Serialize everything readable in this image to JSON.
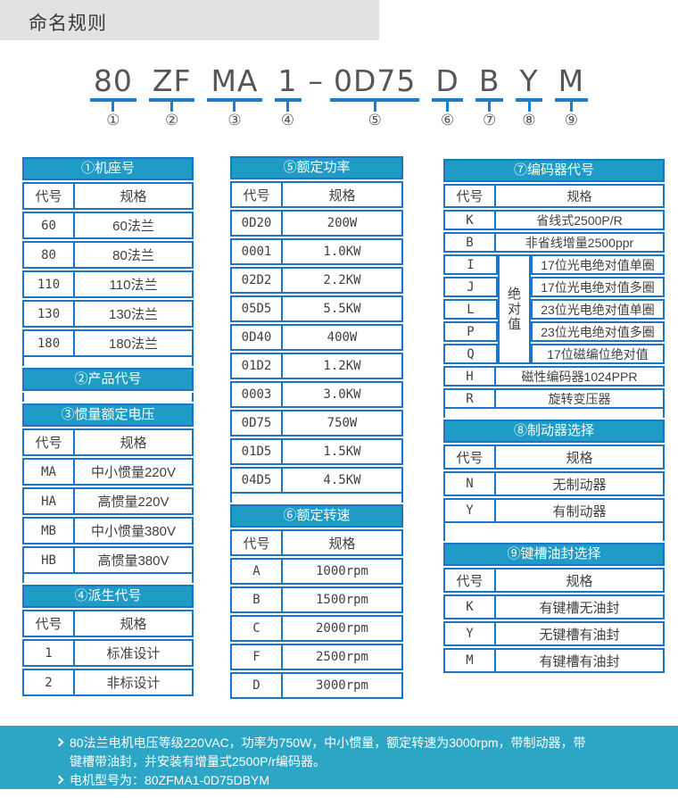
{
  "page": {
    "title": "命名规则"
  },
  "colors": {
    "table_border": "#1b76c8",
    "table_header_teal": "#1e9cc5",
    "footer_teal": "#2da5c4",
    "title_bar_gray": "#e2e2e4",
    "underline_blue": "#1e7ccc"
  },
  "model_code": {
    "parts": [
      {
        "text": "80",
        "num": "①"
      },
      {
        "text": "ZF",
        "num": "②"
      },
      {
        "text": "MA",
        "num": "③"
      },
      {
        "text": "1",
        "num": "④"
      },
      {
        "sep": "–"
      },
      {
        "text": "0D75",
        "num": "⑤"
      },
      {
        "text": "D",
        "num": "⑥"
      },
      {
        "text": "B",
        "num": "⑦"
      },
      {
        "text": "Y",
        "num": "⑧"
      },
      {
        "text": "M",
        "num": "⑨"
      }
    ]
  },
  "tables": [
    {
      "id": "frame",
      "col": "left",
      "title": "①机座号",
      "headers": [
        "代号",
        "规格"
      ],
      "rows": [
        [
          "60",
          "60法兰"
        ],
        [
          "80",
          "80法兰"
        ],
        [
          "110",
          "110法兰"
        ],
        [
          "130",
          "130法兰"
        ],
        [
          "180",
          "180法兰"
        ]
      ]
    },
    {
      "id": "product",
      "col": "left",
      "title": "②产品代号",
      "headers": null,
      "rows": []
    },
    {
      "id": "inertia",
      "col": "left",
      "title": "③惯量额定电压",
      "headers": [
        "代号",
        "规格"
      ],
      "rows": [
        [
          "MA",
          "中小惯量220V"
        ],
        [
          "HA",
          "高惯量220V"
        ],
        [
          "MB",
          "中小惯量380V"
        ],
        [
          "HB",
          "高惯量380V"
        ]
      ]
    },
    {
      "id": "derivative",
      "col": "left",
      "title": "④派生代号",
      "headers": [
        "代号",
        "规格"
      ],
      "rows": [
        [
          "1",
          "标准设计"
        ],
        [
          "2",
          "非标设计"
        ]
      ]
    },
    {
      "id": "power",
      "col": "mid",
      "title": "⑤额定功率",
      "headers": [
        "代号",
        "规格"
      ],
      "rows": [
        [
          "0D20",
          "200W"
        ],
        [
          "0001",
          "1.0KW"
        ],
        [
          "02D2",
          "2.2KW"
        ],
        [
          "05D5",
          "5.5KW"
        ],
        [
          "0D40",
          "400W"
        ],
        [
          "01D2",
          "1.2KW"
        ],
        [
          "0003",
          "3.0KW"
        ],
        [
          "0D75",
          "750W"
        ],
        [
          "01D5",
          "1.5KW"
        ],
        [
          "04D5",
          "4.5KW"
        ]
      ]
    },
    {
      "id": "speed",
      "col": "mid",
      "title": "⑥额定转速",
      "headers": [
        "代号",
        "规格"
      ],
      "rows": [
        [
          "A",
          "1000rpm"
        ],
        [
          "B",
          "1500rpm"
        ],
        [
          "C",
          "2000rpm"
        ],
        [
          "F",
          "2500rpm"
        ],
        [
          "D",
          "3000rpm"
        ]
      ]
    },
    {
      "id": "encoder",
      "col": "right",
      "title": "⑦编码器代号",
      "headers": [
        "代号",
        "规格"
      ],
      "rows": [
        [
          "K",
          "省线式2500P/R"
        ],
        [
          "B",
          "非省线增量2500ppr"
        ]
      ],
      "abs_group": {
        "label": "绝对值",
        "rows": [
          [
            "I",
            "17位光电绝对值单圈"
          ],
          [
            "J",
            "17位光电绝对值多圈"
          ],
          [
            "L",
            "23位光电绝对值单圈"
          ],
          [
            "P",
            "23位光电绝对值多圈"
          ],
          [
            "Q",
            "17位磁编位绝对值"
          ]
        ]
      },
      "rows_after": [
        [
          "H",
          "磁性编码器1024PPR"
        ],
        [
          "R",
          "旋转变压器"
        ]
      ]
    },
    {
      "id": "brake",
      "col": "right",
      "title": "⑧制动器选择",
      "headers": [
        "代号",
        "规格"
      ],
      "rows": [
        [
          "N",
          "无制动器"
        ],
        [
          "Y",
          "有制动器"
        ]
      ]
    },
    {
      "id": "keyway",
      "col": "right",
      "title": "⑨键槽油封选择",
      "headers": [
        "代号",
        "规格"
      ],
      "gap": "tall",
      "rows": [
        [
          "K",
          "有键槽无油封"
        ],
        [
          "Y",
          "无键槽有油封"
        ],
        [
          "M",
          "有键槽有油封"
        ]
      ]
    }
  ],
  "footer": {
    "notes": [
      "80法兰电机电压等级220VAC，功率为750W，中小惯量，额定转速为3000rpm，带制动器，带键槽带油封，并安装有增量式2500P/r编码器。",
      "电机型号为：80ZFMA1-0D75DBYM"
    ]
  }
}
